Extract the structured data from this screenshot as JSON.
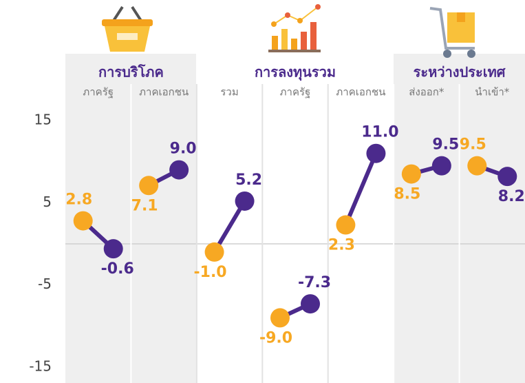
{
  "chart_data": {
    "type": "dumbbell",
    "groups": [
      {
        "name": "การบริโภค",
        "categories": [
          "ภาครัฐ",
          "ภาคเอกชน"
        ]
      },
      {
        "name": "การลงทุนรวม",
        "categories": [
          "รวม",
          "ภาครัฐ",
          "ภาคเอกชน"
        ]
      },
      {
        "name": "ระหว่างประเทศ",
        "categories": [
          "ส่งออก*",
          "นำเข้า*"
        ]
      }
    ],
    "series": [
      {
        "color": "#f7a823",
        "values": [
          2.8,
          7.1,
          -1.0,
          -9.0,
          2.3,
          8.5,
          9.5
        ],
        "value_labels": [
          "2.8",
          "7.1",
          "-1.0",
          "-9.0",
          "2.3",
          "8.5",
          "9.5"
        ]
      },
      {
        "color": "#4b2a8c",
        "values": [
          -0.6,
          9.0,
          5.2,
          -7.3,
          11.0,
          9.5,
          8.2
        ],
        "value_labels": [
          "-0.6",
          "9.0",
          "5.2",
          "-7.3",
          "11.0",
          "9.5",
          "8.2"
        ]
      }
    ],
    "ylim": [
      -15,
      15
    ],
    "yticks": [
      15,
      5,
      -5,
      -15
    ]
  }
}
